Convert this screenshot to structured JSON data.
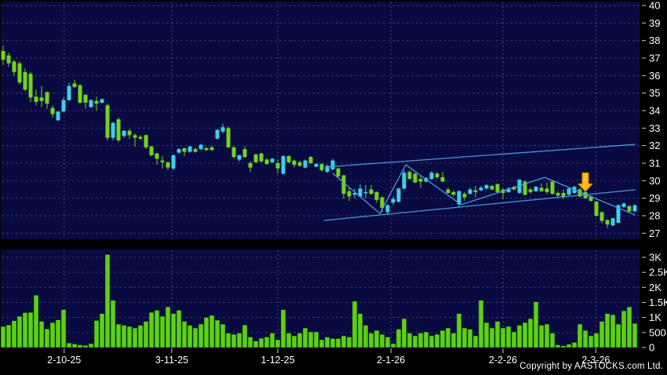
{
  "footer": {
    "copyright": "Copyright by AASTOCKS.com Ltd."
  },
  "colors": {
    "background": "#000000",
    "panel_bg": "#0a0a42",
    "grid": "#6b6b9e",
    "vgrid": "#7d7db5",
    "up_candle": "#3ed1e6",
    "down_candle": "#72d41c",
    "volume_bar": "#5dd017",
    "trend_line": "#4f9fe0",
    "axis_text": "#ffffff",
    "tick_mark": "#cccccc",
    "arrow_fill": "#ffc21f",
    "arrow_stroke": "#e89000"
  },
  "chart_data": {
    "type": "candlestick",
    "panels": [
      "price",
      "volume"
    ],
    "grid": true,
    "legend": false,
    "price_axis": {
      "side": "right",
      "min": 27,
      "max": 40,
      "tick_step": 1,
      "tick_labels": [
        "40",
        "39",
        "38",
        "37",
        "36",
        "35",
        "34",
        "33",
        "32",
        "31",
        "30",
        "29",
        "28",
        "27"
      ]
    },
    "volume_axis": {
      "side": "right",
      "tick_labels": [
        "3K",
        "2.5K",
        "2K",
        "1.5K",
        "1K",
        "500",
        "0"
      ],
      "tick_values": [
        3000,
        2500,
        2000,
        1500,
        1000,
        500,
        0
      ]
    },
    "x_axis": {
      "tick_labels": [
        "2-10-25",
        "3-11-25",
        "1-12-25",
        "2-1-26",
        "2-2-26",
        "2-3-26"
      ],
      "tick_indices": [
        11.1,
        30.7,
        50.0,
        70.6,
        91.0,
        107.9
      ]
    },
    "candles_format": "[open, high, low, close] ; close>=open = up(cyan), close<open = down(green)",
    "candles": [
      [
        37.4,
        37.7,
        36.6,
        36.9
      ],
      [
        37.15,
        37.3,
        36.5,
        36.7
      ],
      [
        36.8,
        36.9,
        36.0,
        36.2
      ],
      [
        36.7,
        36.8,
        35.5,
        35.6
      ],
      [
        36.2,
        36.4,
        35.1,
        35.2
      ],
      [
        36.1,
        36.2,
        34.5,
        34.75
      ],
      [
        34.8,
        35.2,
        34.3,
        34.5
      ],
      [
        34.75,
        35.4,
        34.2,
        34.55
      ],
      [
        35.05,
        35.1,
        34.1,
        34.4
      ],
      [
        34.15,
        34.3,
        33.6,
        33.8
      ],
      [
        33.45,
        33.95,
        33.4,
        33.95
      ],
      [
        33.95,
        34.75,
        33.9,
        34.6
      ],
      [
        34.6,
        35.6,
        34.55,
        35.4
      ],
      [
        35.55,
        35.75,
        35.3,
        35.35
      ],
      [
        35.45,
        35.5,
        34.4,
        34.45
      ],
      [
        34.9,
        34.95,
        34.1,
        34.45
      ],
      [
        34.2,
        34.65,
        34.15,
        34.6
      ],
      [
        34.55,
        34.8,
        34.0,
        34.4
      ],
      [
        34.45,
        34.7,
        34.4,
        34.65
      ],
      [
        34.3,
        34.4,
        32.3,
        32.45
      ],
      [
        32.45,
        33.35,
        32.3,
        33.3
      ],
      [
        33.5,
        33.6,
        32.2,
        32.3
      ],
      [
        32.55,
        32.9,
        32.45,
        32.85
      ],
      [
        32.85,
        32.95,
        32.4,
        32.6
      ],
      [
        32.6,
        32.7,
        31.95,
        32.45
      ],
      [
        32.5,
        32.6,
        32.3,
        32.4
      ],
      [
        32.6,
        32.65,
        31.8,
        31.9
      ],
      [
        31.95,
        32.0,
        31.4,
        31.45
      ],
      [
        31.55,
        31.6,
        30.9,
        31.25
      ],
      [
        31.15,
        31.4,
        30.7,
        31.05
      ],
      [
        31.05,
        31.1,
        30.6,
        30.75
      ],
      [
        30.7,
        31.5,
        30.6,
        31.45
      ],
      [
        31.6,
        31.85,
        31.55,
        31.8
      ],
      [
        31.85,
        31.9,
        31.4,
        31.65
      ],
      [
        31.65,
        32.0,
        31.6,
        31.95
      ],
      [
        31.8,
        31.9,
        31.6,
        31.65
      ],
      [
        31.8,
        32.1,
        31.75,
        32.05
      ],
      [
        31.85,
        31.95,
        31.7,
        31.75
      ],
      [
        31.9,
        32.0,
        31.7,
        31.75
      ],
      [
        32.4,
        32.95,
        32.35,
        32.9
      ],
      [
        32.8,
        33.25,
        32.7,
        33.05
      ],
      [
        33.0,
        33.1,
        31.85,
        31.9
      ],
      [
        31.9,
        31.95,
        31.25,
        31.35
      ],
      [
        31.2,
        31.5,
        31.1,
        31.45
      ],
      [
        31.8,
        31.95,
        31.3,
        31.35
      ],
      [
        31.0,
        31.1,
        30.5,
        30.75
      ],
      [
        31.5,
        31.55,
        31.0,
        31.05
      ],
      [
        31.55,
        31.6,
        31.05,
        31.1
      ],
      [
        31.2,
        31.3,
        30.9,
        30.95
      ],
      [
        31.05,
        31.3,
        31.0,
        31.25
      ],
      [
        31.0,
        31.2,
        30.4,
        30.7
      ],
      [
        30.4,
        31.45,
        30.35,
        31.4
      ],
      [
        31.4,
        31.45,
        31.0,
        31.05
      ],
      [
        31.15,
        31.2,
        30.75,
        30.9
      ],
      [
        31.05,
        31.15,
        30.8,
        30.85
      ],
      [
        30.75,
        31.2,
        30.7,
        31.15
      ],
      [
        31.35,
        31.4,
        30.95,
        31.0
      ],
      [
        30.8,
        31.0,
        30.75,
        30.95
      ],
      [
        30.95,
        31.0,
        30.5,
        30.6
      ],
      [
        30.5,
        30.9,
        30.45,
        30.85
      ],
      [
        30.65,
        31.25,
        30.6,
        31.15
      ],
      [
        30.7,
        30.75,
        30.2,
        30.25
      ],
      [
        30.3,
        30.35,
        28.95,
        29.25
      ],
      [
        29.4,
        29.6,
        28.85,
        29.1
      ],
      [
        29.2,
        29.55,
        29.0,
        29.3
      ],
      [
        29.1,
        29.8,
        29.05,
        29.55
      ],
      [
        29.3,
        29.75,
        29.0,
        29.35
      ],
      [
        29.5,
        29.75,
        29.2,
        29.25
      ],
      [
        29.35,
        29.4,
        28.75,
        28.9
      ],
      [
        29.05,
        29.1,
        28.2,
        28.45
      ],
      [
        28.2,
        28.65,
        28.05,
        28.6
      ],
      [
        28.75,
        29.1,
        28.6,
        28.95
      ],
      [
        28.8,
        29.6,
        28.75,
        29.55
      ],
      [
        29.55,
        30.6,
        29.5,
        30.45
      ],
      [
        30.5,
        30.6,
        30.05,
        30.1
      ],
      [
        30.4,
        30.45,
        29.85,
        29.9
      ],
      [
        30.1,
        30.3,
        29.6,
        29.95
      ],
      [
        29.95,
        30.2,
        29.9,
        30.15
      ],
      [
        30.1,
        30.55,
        30.05,
        30.45
      ],
      [
        30.4,
        30.5,
        30.1,
        30.2
      ],
      [
        30.2,
        30.5,
        29.9,
        29.95
      ],
      [
        29.5,
        29.6,
        29.25,
        29.3
      ],
      [
        29.35,
        29.45,
        29.1,
        29.2
      ],
      [
        28.65,
        29.45,
        28.5,
        29.4
      ],
      [
        29.25,
        29.35,
        28.85,
        29.05
      ],
      [
        29.25,
        29.6,
        29.2,
        29.5
      ],
      [
        29.45,
        29.7,
        29.05,
        29.35
      ],
      [
        29.45,
        29.7,
        29.4,
        29.6
      ],
      [
        29.55,
        29.8,
        29.5,
        29.75
      ],
      [
        29.7,
        29.75,
        29.45,
        29.5
      ],
      [
        29.8,
        29.85,
        29.3,
        29.35
      ],
      [
        29.5,
        29.55,
        28.95,
        29.3
      ],
      [
        29.35,
        29.65,
        29.3,
        29.55
      ],
      [
        29.65,
        29.7,
        29.45,
        29.5
      ],
      [
        29.3,
        30.1,
        29.25,
        30.05
      ],
      [
        29.95,
        30.0,
        29.15,
        29.2
      ],
      [
        29.5,
        29.6,
        29.25,
        29.35
      ],
      [
        29.4,
        29.7,
        29.35,
        29.65
      ],
      [
        29.6,
        29.85,
        29.35,
        29.4
      ],
      [
        29.55,
        29.9,
        29.25,
        29.35
      ],
      [
        29.95,
        30.0,
        29.2,
        29.25
      ],
      [
        29.3,
        29.4,
        29.05,
        29.15
      ],
      [
        29.3,
        29.5,
        28.95,
        29.1
      ],
      [
        29.2,
        29.6,
        29.15,
        29.55
      ],
      [
        29.3,
        29.7,
        29.25,
        29.65
      ],
      [
        29.5,
        29.6,
        29.05,
        29.1
      ],
      [
        29.35,
        29.45,
        28.95,
        29.0
      ],
      [
        29.1,
        29.15,
        28.8,
        28.85
      ],
      [
        28.8,
        28.85,
        27.95,
        28.0
      ],
      [
        28.2,
        28.25,
        27.55,
        27.7
      ],
      [
        27.75,
        27.8,
        27.3,
        27.5
      ],
      [
        27.45,
        27.9,
        27.4,
        27.85
      ],
      [
        27.6,
        28.65,
        27.55,
        28.6
      ],
      [
        28.5,
        28.75,
        28.45,
        28.7
      ],
      [
        28.55,
        28.6,
        28.15,
        28.25
      ],
      [
        28.25,
        28.65,
        28.2,
        28.6
      ]
    ],
    "volumes": [
      700,
      750,
      890,
      1040,
      1160,
      1170,
      1740,
      870,
      620,
      830,
      920,
      1260,
      150,
      120,
      90,
      70,
      130,
      900,
      1130,
      3090,
      1570,
      780,
      740,
      700,
      650,
      740,
      870,
      1170,
      1240,
      1040,
      1350,
      1130,
      1240,
      870,
      740,
      650,
      780,
      1000,
      1070,
      910,
      780,
      480,
      440,
      480,
      750,
      350,
      220,
      310,
      350,
      480,
      260,
      1260,
      480,
      390,
      480,
      650,
      520,
      520,
      260,
      350,
      300,
      300,
      390,
      350,
      1540,
      1130,
      740,
      480,
      570,
      440,
      350,
      130,
      610,
      960,
      480,
      390,
      480,
      520,
      390,
      440,
      570,
      650,
      480,
      1130,
      650,
      610,
      390,
      1570,
      830,
      650,
      870,
      650,
      700,
      520,
      740,
      830,
      960,
      1520,
      740,
      780,
      480,
      90,
      60,
      110,
      170,
      780,
      570,
      390,
      480,
      870,
      1130,
      1090,
      780,
      1220,
      1350,
      800
    ],
    "annotations": {
      "trendlines": [
        {
          "name": "upper-channel-line",
          "x1": 58.7,
          "p1": 30.78,
          "x2": 115.1,
          "p2": 32.07
        },
        {
          "name": "lower-channel-line",
          "x1": 58.4,
          "p1": 27.73,
          "x2": 115.1,
          "p2": 29.48
        }
      ],
      "zigzag": [
        [
          60.0,
          30.42
        ],
        [
          68.6,
          28.13
        ],
        [
          73.3,
          30.91
        ],
        [
          83.4,
          28.63
        ],
        [
          98.6,
          30.19
        ],
        [
          115.1,
          28.04
        ]
      ],
      "arrow": {
        "index": 106,
        "price": 29.45,
        "direction": "down"
      }
    }
  }
}
